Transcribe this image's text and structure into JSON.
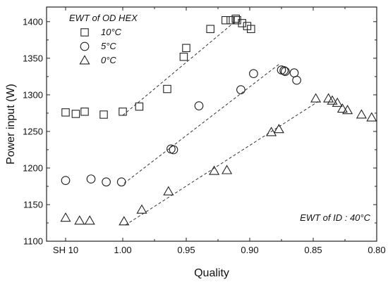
{
  "chart_data": {
    "type": "scatter",
    "xlabel": "Quality",
    "ylabel": "Power input (W)",
    "xlim": [
      1.06,
      0.8
    ],
    "ylim": [
      1100,
      1420
    ],
    "x_ticks": [
      {
        "value": 1.045,
        "label": "SH 10"
      },
      {
        "value": 1.0,
        "label": "1.00"
      },
      {
        "value": 0.95,
        "label": "0.95"
      },
      {
        "value": 0.9,
        "label": "0.90"
      },
      {
        "value": 0.85,
        "label": "0.85"
      },
      {
        "value": 0.8,
        "label": "0.80"
      }
    ],
    "y_ticks": [
      1100,
      1150,
      1200,
      1250,
      1300,
      1350,
      1400
    ],
    "legend_title": "EWT of OD HEX",
    "annotation": "EWT of ID : 40°C",
    "legend_position": "top-left",
    "grid": false,
    "series": [
      {
        "name": "10°C",
        "marker": "square",
        "points": [
          [
            1.045,
            1276
          ],
          [
            1.037,
            1274
          ],
          [
            1.03,
            1277
          ],
          [
            1.015,
            1273
          ],
          [
            1.0,
            1277
          ],
          [
            0.987,
            1284
          ],
          [
            0.965,
            1308
          ],
          [
            0.952,
            1352
          ],
          [
            0.95,
            1364
          ],
          [
            0.931,
            1390
          ],
          [
            0.915,
            1402
          ],
          [
            0.911,
            1404
          ],
          [
            0.91,
            1402
          ],
          [
            0.906,
            1398
          ],
          [
            0.902,
            1394
          ],
          [
            0.899,
            1390
          ],
          [
            0.919,
            1402
          ]
        ],
        "fit": [
          [
            1.0,
            1272
          ],
          [
            0.913,
            1398
          ]
        ]
      },
      {
        "name": "5°C",
        "marker": "circle",
        "points": [
          [
            1.045,
            1183
          ],
          [
            1.025,
            1185
          ],
          [
            1.013,
            1181
          ],
          [
            1.001,
            1181
          ],
          [
            0.962,
            1226
          ],
          [
            0.96,
            1225
          ],
          [
            0.94,
            1285
          ],
          [
            0.907,
            1307
          ],
          [
            0.897,
            1329
          ],
          [
            0.875,
            1334
          ],
          [
            0.873,
            1333
          ],
          [
            0.872,
            1332
          ],
          [
            0.865,
            1330
          ],
          [
            0.863,
            1320
          ]
        ],
        "fit": [
          [
            0.999,
            1179
          ],
          [
            0.876,
            1343
          ]
        ]
      },
      {
        "name": "0°C",
        "marker": "triangle",
        "points": [
          [
            1.045,
            1132
          ],
          [
            1.034,
            1128
          ],
          [
            1.026,
            1128
          ],
          [
            0.999,
            1127
          ],
          [
            0.985,
            1143
          ],
          [
            0.964,
            1168
          ],
          [
            0.928,
            1196
          ],
          [
            0.918,
            1197
          ],
          [
            0.883,
            1249
          ],
          [
            0.877,
            1253
          ],
          [
            0.848,
            1295
          ],
          [
            0.838,
            1295
          ],
          [
            0.835,
            1292
          ],
          [
            0.831,
            1289
          ],
          [
            0.827,
            1281
          ],
          [
            0.823,
            1279
          ],
          [
            0.812,
            1273
          ],
          [
            0.804,
            1269
          ]
        ],
        "fit": [
          [
            0.998,
            1122
          ],
          [
            0.846,
            1291
          ]
        ]
      }
    ]
  }
}
